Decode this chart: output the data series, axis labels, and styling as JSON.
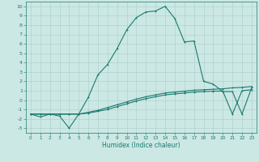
{
  "xlabel": "Humidex (Indice chaleur)",
  "bg_color": "#cce8e4",
  "grid_color": "#aaccca",
  "line_color": "#1a7a70",
  "xlim": [
    -0.5,
    23.5
  ],
  "ylim": [
    -3.5,
    10.5
  ],
  "xtick_labels": [
    "0",
    "1",
    "2",
    "3",
    "4",
    "5",
    "6",
    "7",
    "8",
    "9",
    "10",
    "11",
    "12",
    "13",
    "14",
    "15",
    "16",
    "17",
    "18",
    "19",
    "20",
    "21",
    "22",
    "23"
  ],
  "ytick_labels": [
    "-3",
    "-2",
    "-1",
    "0",
    "1",
    "2",
    "3",
    "4",
    "5",
    "6",
    "7",
    "8",
    "9",
    "10"
  ],
  "ytick_vals": [
    -3,
    -2,
    -1,
    0,
    1,
    2,
    3,
    4,
    5,
    6,
    7,
    8,
    9,
    10
  ],
  "curve1_x": [
    0,
    1,
    2,
    3,
    4,
    5,
    6,
    7,
    8,
    9,
    10,
    11,
    12,
    13,
    14,
    15,
    16,
    17,
    18,
    19,
    20,
    21,
    22,
    23
  ],
  "curve1_y": [
    -1.5,
    -1.8,
    -1.5,
    -1.7,
    -3.0,
    -1.5,
    0.3,
    2.7,
    3.8,
    5.5,
    7.5,
    8.8,
    9.4,
    9.5,
    10.0,
    8.7,
    6.2,
    6.3,
    2.0,
    1.7,
    0.9,
    0.9,
    -1.5,
    1.3
  ],
  "curve2_x": [
    0,
    1,
    2,
    3,
    4,
    5,
    6,
    7,
    8,
    9,
    10,
    11,
    12,
    13,
    14,
    15,
    16,
    17,
    18,
    19,
    20,
    21,
    22,
    23
  ],
  "curve2_y": [
    -1.5,
    -1.5,
    -1.5,
    -1.5,
    -1.5,
    -1.5,
    -1.3,
    -1.1,
    -0.8,
    -0.5,
    -0.2,
    0.1,
    0.35,
    0.55,
    0.75,
    0.85,
    0.95,
    1.05,
    1.1,
    1.15,
    1.2,
    1.3,
    1.35,
    1.45
  ],
  "curve3_x": [
    0,
    1,
    2,
    3,
    4,
    5,
    6,
    7,
    8,
    9,
    10,
    11,
    12,
    13,
    14,
    15,
    16,
    17,
    18,
    19,
    20,
    21,
    22,
    23
  ],
  "curve3_y": [
    -1.5,
    -1.5,
    -1.5,
    -1.5,
    -1.5,
    -1.5,
    -1.4,
    -1.2,
    -1.0,
    -0.7,
    -0.4,
    -0.1,
    0.15,
    0.35,
    0.55,
    0.65,
    0.75,
    0.85,
    0.9,
    0.95,
    0.95,
    -1.5,
    1.0,
    1.1
  ]
}
